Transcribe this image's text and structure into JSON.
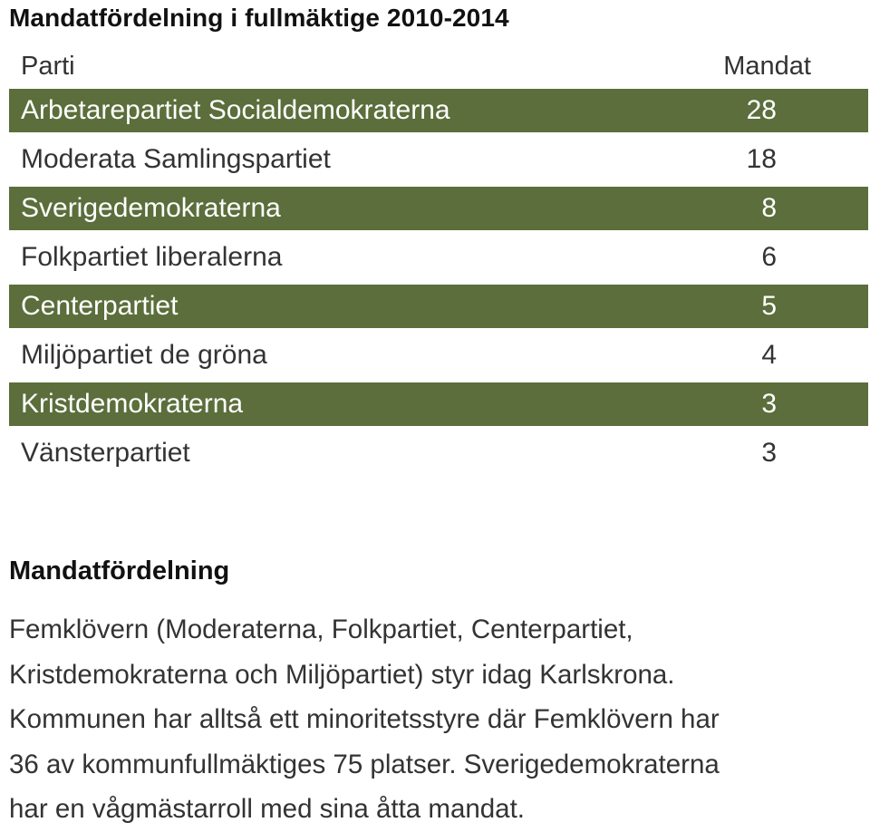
{
  "title": "Mandatfördelning i fullmäktige 2010-2014",
  "table": {
    "header": {
      "party": "Parti",
      "seats": "Mandat"
    },
    "rows": [
      {
        "party": "Arbetarepartiet Socialdemokraterna",
        "seats": "28"
      },
      {
        "party": "Moderata Samlingspartiet",
        "seats": "18"
      },
      {
        "party": "Sverigedemokraterna",
        "seats": "8"
      },
      {
        "party": "Folkpartiet liberalerna",
        "seats": "6"
      },
      {
        "party": "Centerpartiet",
        "seats": "5"
      },
      {
        "party": "Miljöpartiet de gröna",
        "seats": "4"
      },
      {
        "party": "Kristdemokraterna",
        "seats": "3"
      },
      {
        "party": "Vänsterpartiet",
        "seats": "3"
      }
    ],
    "stripe_color": "#5b6e3b"
  },
  "section": {
    "heading": "Mandatfördelning",
    "lines": [
      "Femklövern (Moderaterna, Folkpartiet, Centerpartiet,",
      "Kristdemokraterna och Miljöpartiet) styr idag Karlskrona.",
      "Kommunen har alltså ett minoritetsstyre där Femklövern har",
      "36 av kommunfullmäktiges 75 platser. Sverigedemokraterna",
      "har en vågmästarroll med sina åtta mandat."
    ]
  }
}
